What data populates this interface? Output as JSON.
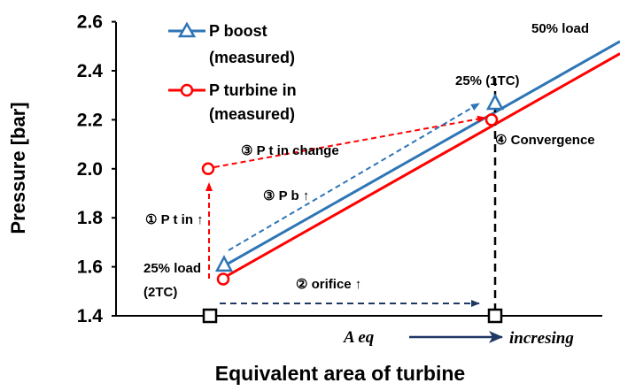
{
  "chart_data": {
    "type": "line",
    "title": "",
    "xlabel": "Equivalent area of turbine",
    "ylabel": "Pressure [bar]",
    "ylim": [
      1.4,
      2.6
    ],
    "yticks": [
      "1.4",
      "1.6",
      "1.8",
      "2.0",
      "2.2",
      "2.4",
      "2.6"
    ],
    "grid": false,
    "legend_position": "top-left",
    "series": [
      {
        "name": "P boost\n(measured)",
        "color": "#2e75b6",
        "marker": "triangle",
        "line_start": 1.61,
        "line_end": 2.52,
        "points": [
          {
            "x": "start",
            "y": 1.61
          },
          {
            "x": "end",
            "y": 2.27
          }
        ]
      },
      {
        "name": "P turbine in\n(measured)",
        "color": "#ff0000",
        "marker": "circle",
        "line_start": 1.55,
        "line_end": 2.47,
        "points": [
          {
            "x": "start",
            "y": 1.55
          },
          {
            "x": "start",
            "y": 2.0
          },
          {
            "x": "end",
            "y": 2.2
          }
        ]
      }
    ],
    "x_markers": [
      {
        "y": 1.4
      },
      {
        "y": 1.4
      }
    ],
    "annotations": {
      "load_50": "50% load",
      "load_25_1tc": "25% (1TC)",
      "load_25_2tc_line1": "25% load",
      "load_25_2tc_line2": "(2TC)",
      "step1": "① P t in ↑",
      "step2": "② orifice ↑",
      "step3a": "③ P t in change",
      "step3b": "③ P b ↑",
      "step4": "④ Convergence",
      "aeq": "A eq",
      "increasing": "incresing"
    }
  }
}
